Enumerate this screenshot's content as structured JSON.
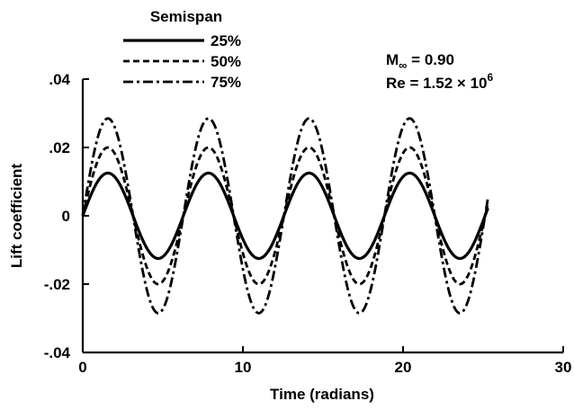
{
  "chart_data": {
    "type": "line",
    "xlabel": "Time (radians)",
    "ylabel": "Lift coefficient",
    "xlim": [
      0,
      30
    ],
    "ylim": [
      -0.04,
      0.04
    ],
    "xticks": [
      0,
      10,
      20,
      30
    ],
    "xtick_labels": [
      "0",
      "10",
      "20",
      "30"
    ],
    "yticks": [
      -0.04,
      -0.02,
      0,
      0.02,
      0.04
    ],
    "ytick_labels": [
      "-.04",
      "-.02",
      "0",
      ".02",
      ".04"
    ],
    "grid": false,
    "legend_title": "Semispan",
    "legend_position": "top-left",
    "annotation": {
      "mach": "M",
      "mach_sub": "∞",
      "mach_value": " = 0.90",
      "re": "Re = 1.52 × 10",
      "re_exp": "6"
    },
    "series": [
      {
        "name": "25%",
        "style": "solid",
        "amplitude": 0.0125,
        "period": 6.28,
        "x_start": 0,
        "x_end": 25.3
      },
      {
        "name": "50%",
        "style": "dashed",
        "amplitude": 0.02,
        "period": 6.28,
        "x_start": 0,
        "x_end": 25.3
      },
      {
        "name": "75%",
        "style": "dash-dot",
        "amplitude": 0.0285,
        "period": 6.28,
        "x_start": 0,
        "x_end": 25.3
      }
    ]
  }
}
